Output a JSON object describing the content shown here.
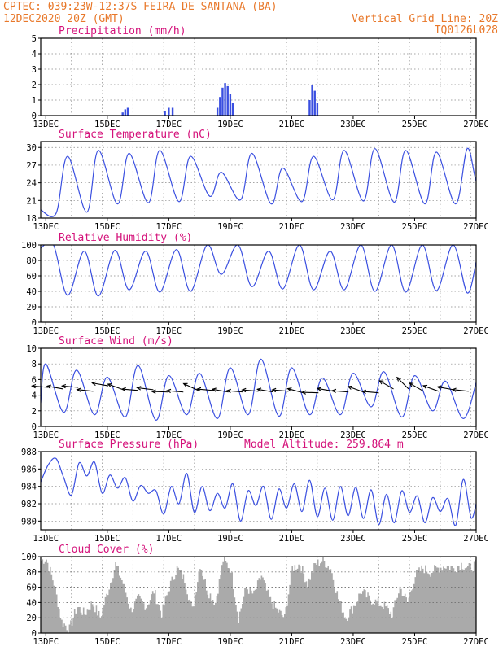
{
  "header": {
    "line1_left": "CPTEC:   039:23W-12:37S  FEIRA DE SANTANA (BA)",
    "line2_left": "12DEC2020 20Z (GMT)",
    "line2_right": "Vertical Grid Line: 20Z",
    "line3_right": "TQ0126L028"
  },
  "colors": {
    "header": "#e8782a",
    "panel_title": "#d4117a",
    "series": "#3a4fe0",
    "wind_arrow": "#000000",
    "cloud_fill": "#aaaaaa",
    "grid": "#888888"
  },
  "chart_data": [
    {
      "id": "precip",
      "type": "bar",
      "title": "Precipitation (mm/h)",
      "ylim": [
        0,
        5
      ],
      "yticks": [
        "0",
        "1",
        "2",
        "3",
        "4",
        "5"
      ],
      "xticks": [
        "13DEC",
        "15DEC",
        "17DEC",
        "19DEC",
        "21DEC",
        "23DEC",
        "25DEC",
        "27DEC"
      ],
      "x_start": "12DEC2020 20Z",
      "x_end": "27DEC2020 00Z",
      "x": [
        "15DEC 12Z",
        "15DEC 14Z",
        "15DEC 16Z",
        "16DEC 21Z",
        "17DEC 00Z",
        "17DEC 03Z",
        "18DEC 14Z",
        "18DEC 16Z",
        "18DEC 18Z",
        "18DEC 20Z",
        "18DEC 22Z",
        "19DEC 00Z",
        "19DEC 02Z",
        "21DEC 14Z",
        "21DEC 16Z",
        "21DEC 18Z",
        "21DEC 20Z"
      ],
      "values": [
        0.2,
        0.4,
        0.5,
        0.3,
        0.5,
        0.5,
        0.5,
        1.2,
        1.8,
        2.1,
        1.9,
        1.4,
        0.8,
        1.0,
        2.0,
        1.6,
        0.8
      ]
    },
    {
      "id": "temp",
      "type": "line",
      "title": "Surface Temperature (nC)",
      "ylim": [
        18,
        31
      ],
      "yticks": [
        "18",
        "21",
        "24",
        "27",
        "30"
      ],
      "xticks": [
        "13DEC",
        "15DEC",
        "17DEC",
        "19DEC",
        "21DEC",
        "23DEC",
        "25DEC",
        "27DEC"
      ],
      "x_start": "12DEC2020 20Z",
      "x_end": "27DEC2020 00Z",
      "daily_min": [
        18.8,
        19.0,
        20.4,
        20.6,
        20.8,
        21.7,
        21.1,
        20.4,
        20.8,
        21.1,
        20.9,
        20.7,
        20.4,
        20.4,
        21.0
      ],
      "daily_max": [
        28.5,
        29.5,
        29.0,
        29.5,
        28.5,
        25.8,
        29.0,
        26.5,
        28.5,
        29.5,
        29.8,
        29.5,
        29.2,
        29.8
      ]
    },
    {
      "id": "rh",
      "type": "line",
      "title": "Relative Humidity (%)",
      "ylim": [
        0,
        100
      ],
      "yticks": [
        "0",
        "20",
        "40",
        "60",
        "80",
        "100"
      ],
      "xticks": [
        "13DEC",
        "15DEC",
        "17DEC",
        "19DEC",
        "21DEC",
        "23DEC",
        "25DEC",
        "27DEC"
      ],
      "x_start": "12DEC2020 20Z",
      "x_end": "27DEC2020 00Z",
      "daily_max": [
        100,
        92,
        93,
        92,
        94,
        100,
        100,
        92,
        100,
        92,
        100,
        100,
        100,
        100
      ],
      "daily_min": [
        35,
        34,
        42,
        39,
        40,
        62,
        46,
        43,
        42,
        42,
        40,
        39,
        41,
        38
      ]
    },
    {
      "id": "wind",
      "type": "line",
      "title": "Surface Wind (m/s)",
      "ylim": [
        0,
        10
      ],
      "yticks": [
        "0",
        "2",
        "4",
        "6",
        "8",
        "10"
      ],
      "xticks": [
        "13DEC",
        "15DEC",
        "17DEC",
        "19DEC",
        "21DEC",
        "23DEC",
        "25DEC",
        "27DEC"
      ],
      "x_start": "12DEC2020 20Z",
      "x_end": "27DEC2020 00Z",
      "daily_max": [
        8.0,
        7.2,
        6.3,
        7.8,
        6.5,
        6.8,
        7.5,
        8.6,
        7.5,
        6.2,
        6.8,
        7.0,
        6.5,
        5.8,
        5.6
      ],
      "daily_min": [
        1.8,
        1.5,
        1.2,
        0.8,
        1.5,
        1.0,
        1.5,
        1.3,
        1.5,
        1.5,
        2.5,
        1.2,
        2.0,
        1.0
      ],
      "arrow_speed": [
        5.0,
        4.8,
        5.0,
        4.5,
        5.2,
        4.7,
        4.6,
        4.7,
        4.4,
        4.4,
        4.6,
        4.6,
        4.4,
        4.4,
        4.5,
        4.4,
        4.5,
        4.3,
        4.3,
        4.5,
        4.4,
        4.4,
        4.3,
        4.8,
        4.8,
        4.5,
        4.5,
        4.7,
        4.5
      ],
      "arrow_dir_deg": [
        95,
        100,
        95,
        96,
        100,
        110,
        95,
        97,
        92,
        95,
        115,
        95,
        100,
        95,
        95,
        100,
        95,
        105,
        92,
        100,
        95,
        110,
        95,
        120,
        135,
        120,
        110,
        100,
        96
      ]
    },
    {
      "id": "pressure",
      "type": "line",
      "title": "Surface Pressure (hPa)",
      "subtitle": "Model Altitude: 259.864 m",
      "ylim": [
        979,
        988
      ],
      "yticks": [
        "980",
        "982",
        "984",
        "986",
        "988"
      ],
      "xticks": [
        "13DEC",
        "15DEC",
        "17DEC",
        "19DEC",
        "21DEC",
        "23DEC",
        "25DEC",
        "27DEC"
      ],
      "x_start": "12DEC2020 20Z",
      "x_end": "27DEC2020 00Z",
      "x": [
        "12DEC 20Z",
        "13DEC 02Z",
        "13DEC 08Z",
        "13DEC 14Z",
        "13DEC 20Z",
        "14DEC 02Z",
        "14DEC 08Z",
        "14DEC 14Z",
        "14DEC 20Z",
        "15DEC 02Z",
        "15DEC 08Z",
        "15DEC 14Z",
        "15DEC 20Z",
        "16DEC 02Z",
        "16DEC 08Z",
        "16DEC 14Z",
        "16DEC 20Z",
        "17DEC 02Z",
        "17DEC 08Z",
        "17DEC 14Z",
        "17DEC 20Z",
        "18DEC 02Z",
        "18DEC 08Z",
        "18DEC 14Z",
        "18DEC 20Z",
        "19DEC 02Z",
        "19DEC 08Z",
        "19DEC 14Z",
        "19DEC 20Z",
        "20DEC 02Z",
        "20DEC 08Z",
        "20DEC 14Z",
        "20DEC 20Z",
        "21DEC 02Z",
        "21DEC 08Z",
        "21DEC 14Z",
        "21DEC 20Z",
        "22DEC 02Z",
        "22DEC 08Z",
        "22DEC 14Z",
        "22DEC 20Z",
        "23DEC 02Z",
        "23DEC 08Z",
        "23DEC 14Z",
        "23DEC 20Z",
        "24DEC 02Z",
        "24DEC 08Z",
        "24DEC 14Z",
        "24DEC 20Z",
        "25DEC 02Z",
        "25DEC 08Z",
        "25DEC 14Z",
        "25DEC 20Z",
        "26DEC 02Z",
        "26DEC 08Z",
        "26DEC 14Z",
        "26DEC 20Z",
        "27DEC 00Z"
      ],
      "values": [
        984.5,
        986.5,
        987.2,
        985.0,
        983.0,
        986.7,
        985.2,
        986.8,
        983.2,
        985.3,
        983.8,
        985.0,
        982.3,
        984.1,
        983.2,
        983.5,
        980.8,
        984.0,
        982.0,
        985.5,
        981.0,
        984.0,
        981.2,
        983.2,
        981.5,
        984.3,
        980.0,
        983.5,
        981.8,
        984.0,
        980.2,
        983.7,
        981.5,
        984.3,
        981.1,
        984.7,
        980.5,
        983.8,
        980.1,
        984.0,
        980.6,
        983.9,
        980.3,
        983.6,
        979.6,
        983.1,
        979.8,
        983.5,
        981.0,
        982.9,
        979.8,
        982.7,
        981.1,
        982.6,
        979.5,
        984.8,
        980.4,
        982.0
      ]
    },
    {
      "id": "cloud",
      "type": "area",
      "title": "Cloud Cover (%)",
      "ylim": [
        0,
        100
      ],
      "yticks": [
        "0",
        "20",
        "40",
        "60",
        "80",
        "100"
      ],
      "xticks": [
        "13DEC",
        "15DEC",
        "17DEC",
        "19DEC",
        "21DEC",
        "23DEC",
        "25DEC",
        "27DEC"
      ],
      "x_start": "12DEC2020 20Z",
      "x_end": "27DEC2020 00Z",
      "x": [
        "12DEC 20Z",
        "13DEC 00Z",
        "13DEC 06Z",
        "13DEC 12Z",
        "13DEC 18Z",
        "14DEC 00Z",
        "14DEC 06Z",
        "14DEC 12Z",
        "14DEC 18Z",
        "15DEC 00Z",
        "15DEC 06Z",
        "15DEC 12Z",
        "15DEC 18Z",
        "16DEC 00Z",
        "16DEC 06Z",
        "16DEC 12Z",
        "16DEC 18Z",
        "17DEC 00Z",
        "17DEC 06Z",
        "17DEC 12Z",
        "17DEC 18Z",
        "18DEC 00Z",
        "18DEC 06Z",
        "18DEC 12Z",
        "18DEC 18Z",
        "19DEC 00Z",
        "19DEC 06Z",
        "19DEC 12Z",
        "19DEC 18Z",
        "20DEC 00Z",
        "20DEC 06Z",
        "20DEC 12Z",
        "20DEC 18Z",
        "21DEC 00Z",
        "21DEC 06Z",
        "21DEC 12Z",
        "21DEC 18Z",
        "22DEC 00Z",
        "22DEC 06Z",
        "22DEC 12Z",
        "22DEC 18Z",
        "23DEC 00Z",
        "23DEC 06Z",
        "23DEC 12Z",
        "23DEC 18Z",
        "24DEC 00Z",
        "24DEC 06Z",
        "24DEC 12Z",
        "24DEC 18Z",
        "25DEC 00Z",
        "25DEC 06Z",
        "25DEC 12Z",
        "25DEC 18Z",
        "26DEC 00Z",
        "26DEC 06Z",
        "26DEC 12Z",
        "26DEC 18Z",
        "27DEC 00Z"
      ],
      "values": [
        95,
        97,
        65,
        15,
        5,
        35,
        25,
        40,
        20,
        55,
        90,
        65,
        30,
        45,
        35,
        55,
        25,
        60,
        85,
        70,
        30,
        90,
        55,
        40,
        95,
        85,
        20,
        60,
        50,
        75,
        45,
        30,
        20,
        85,
        90,
        65,
        90,
        95,
        85,
        45,
        20,
        35,
        55,
        45,
        40,
        35,
        25,
        60,
        40,
        75,
        85,
        80,
        85,
        88,
        85,
        90,
        85,
        90
      ]
    }
  ]
}
